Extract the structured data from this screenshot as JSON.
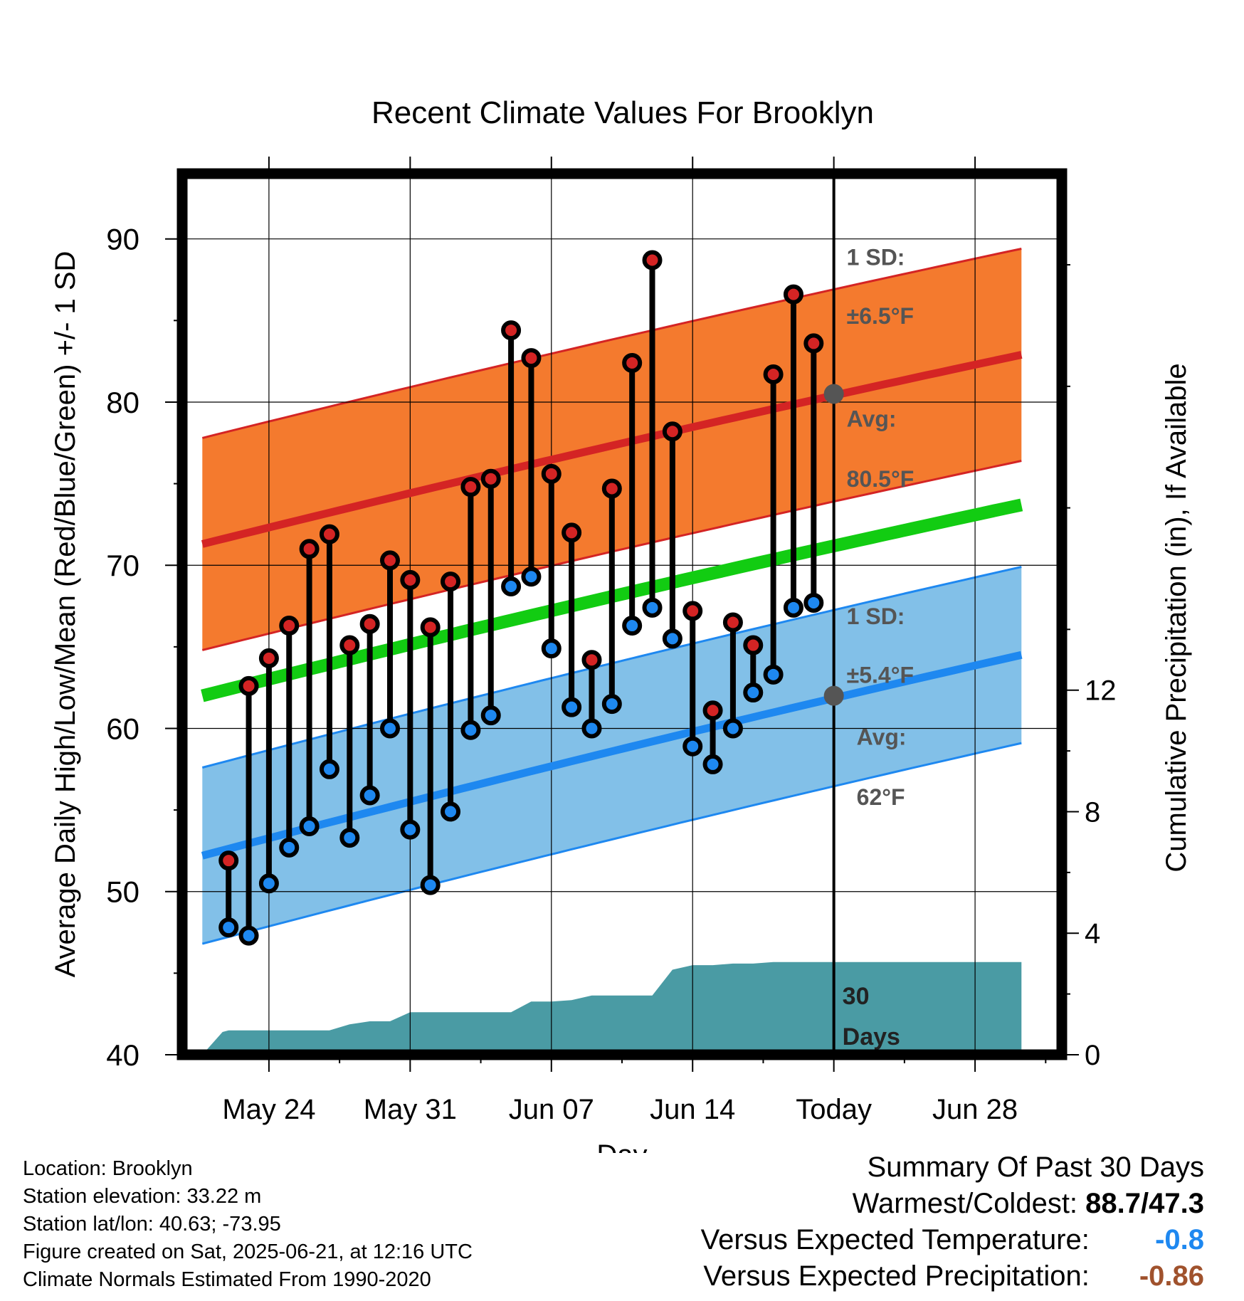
{
  "chart_data": {
    "type": "line",
    "title": "Recent Climate Values For Brooklyn",
    "xlabel": "Day",
    "ylabel": "Average Daily High/Low/Mean (Red/Blue/Green) +/- 1 SD",
    "y2label": "Cumulative Precipitation (in), If Available",
    "xlim": [
      -4.3,
      39.3
    ],
    "ylim": [
      40,
      94
    ],
    "y2lim": [
      0,
      29
    ],
    "x_tick_values": [
      0,
      7,
      14,
      21,
      28,
      35
    ],
    "x_tick_labels": [
      "May 24",
      "May 31",
      "Jun 07",
      "Jun 14",
      "Today",
      "Jun 28"
    ],
    "y_ticks": [
      40,
      50,
      60,
      70,
      80,
      90
    ],
    "y2_ticks": [
      0,
      4,
      8,
      12
    ],
    "x_domain": [
      -3.3,
      37.3
    ],
    "today_x": 28,
    "today_label": "30 Days",
    "high_normal": {
      "start": 71.3,
      "end": 82.9
    },
    "high_sd": 6.5,
    "low_normal": {
      "start": 52.2,
      "end": 64.5
    },
    "low_sd": 5.4,
    "mean_normal": {
      "start": 62.0,
      "end": 73.7
    },
    "high_annotation": {
      "sd_label": "1 SD:",
      "sd_value": "±6.5°F",
      "avg_label": "Avg:",
      "avg_value": "80.5°F",
      "avg": 80.5
    },
    "low_annotation": {
      "sd_label": "1 SD:",
      "sd_value": "±5.4°F",
      "avg_label": "Avg:",
      "avg_value": "62°F",
      "avg": 62
    },
    "days": [
      -2,
      -1,
      0,
      1,
      2,
      3,
      4,
      5,
      6,
      7,
      8,
      9,
      10,
      11,
      12,
      13,
      14,
      15,
      16,
      17,
      18,
      19,
      20,
      21,
      22,
      23,
      24,
      25,
      26,
      27
    ],
    "daily_high": [
      51.9,
      62.6,
      64.3,
      66.3,
      71.0,
      71.9,
      65.1,
      66.4,
      70.3,
      69.1,
      66.2,
      69.0,
      74.8,
      75.3,
      84.4,
      82.7,
      75.6,
      72.0,
      64.2,
      74.7,
      82.4,
      88.7,
      78.2,
      67.2,
      61.1,
      66.5,
      65.1,
      81.7,
      86.6,
      83.6
    ],
    "daily_low": [
      47.8,
      47.3,
      50.5,
      52.7,
      54.0,
      57.5,
      53.3,
      55.9,
      60.0,
      53.8,
      50.4,
      54.9,
      59.9,
      60.8,
      68.7,
      69.3,
      64.9,
      61.3,
      60.0,
      61.5,
      66.3,
      67.4,
      65.5,
      58.9,
      57.8,
      60.0,
      62.2,
      63.3,
      67.4,
      67.7
    ],
    "precip_cumulative": {
      "x": [
        -3.3,
        -2.3,
        -2,
        -1,
        0,
        1,
        2,
        3,
        4,
        5,
        6,
        7,
        8,
        9,
        10,
        11,
        12,
        13,
        14,
        15,
        16,
        17,
        18,
        19,
        20,
        21,
        22,
        23,
        24,
        25,
        26,
        27,
        37.3
      ],
      "values": [
        0.0,
        0.75,
        0.8,
        0.8,
        0.8,
        0.8,
        0.8,
        0.8,
        1.0,
        1.1,
        1.1,
        1.4,
        1.4,
        1.4,
        1.4,
        1.4,
        1.4,
        1.75,
        1.75,
        1.8,
        1.95,
        1.95,
        1.95,
        1.95,
        2.8,
        2.95,
        2.95,
        3.0,
        3.0,
        3.05,
        3.05,
        3.05,
        3.05
      ]
    }
  },
  "info": {
    "location": "Location: Brooklyn",
    "elevation": "Station elevation: 33.22 m",
    "latlon": "Station lat/lon: 40.63; -73.95",
    "created": "Figure created on Sat, 2025-06-21, at 12:16 UTC",
    "normals": "Climate Normals Estimated From 1990-2020"
  },
  "summary": {
    "title": "Summary Of Past 30 Days",
    "warm_label": "Warmest/Coldest:",
    "warm_value": "88.7/47.3",
    "temp_label": "Versus Expected Temperature:",
    "temp_value": "-0.8",
    "precip_label": "Versus Expected Precipitation:",
    "precip_value": "-0.86"
  },
  "colors": {
    "high_band": "#f47a2e",
    "high_line": "#d42424",
    "low_band": "#82c0e8",
    "low_line": "#1e88f0",
    "mean_line": "#12cc12",
    "precip": "#4a9ba4",
    "high_marker": "#d42424",
    "low_marker": "#1e88f0",
    "annotation": "#555555",
    "temp_value": "#1e88f0",
    "precip_value": "#a0522d"
  }
}
